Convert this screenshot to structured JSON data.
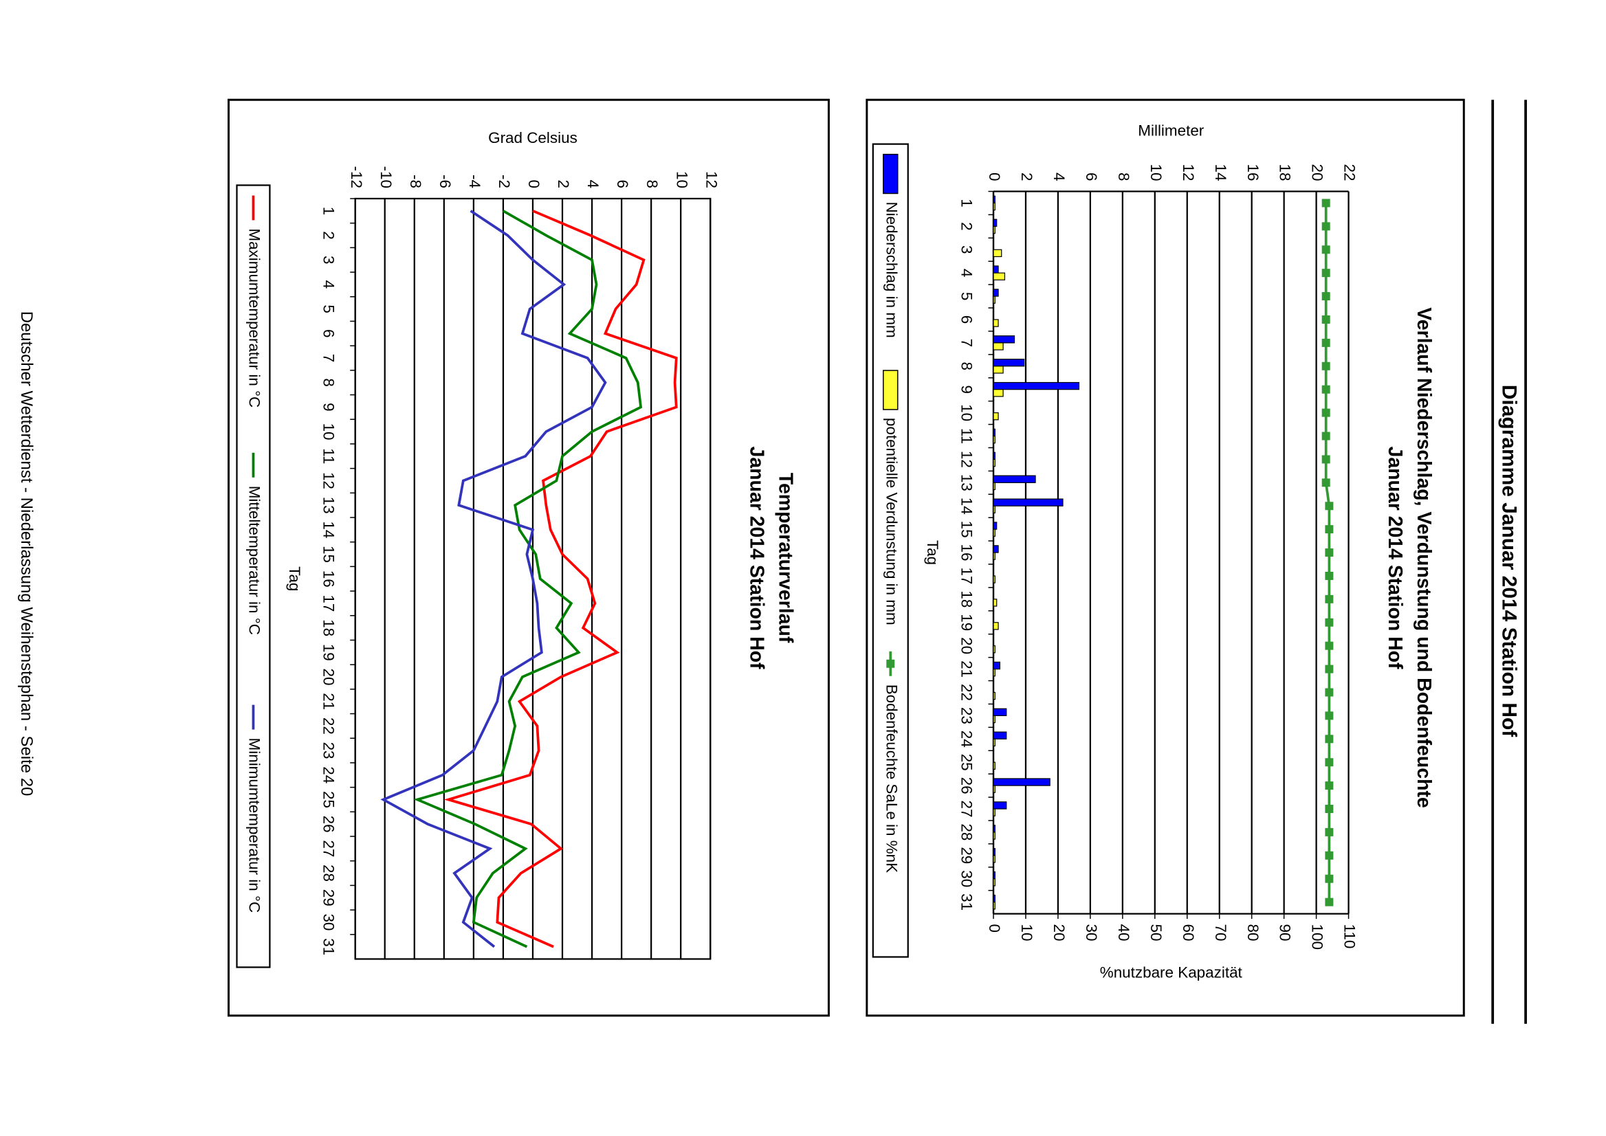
{
  "header": {
    "title": "Diagramme Januar 2014 Station Hof"
  },
  "footer": "Deutscher Wetterdienst - Niederlassung Weihenstephan - Seite 20",
  "chart_data": [
    {
      "type": "bar",
      "title": "Verlauf Niederschlag, Verdunstung und Bodenfeuchte",
      "subtitle": "Januar 2014 Station Hof",
      "x_label": "Tag",
      "y_label": "Millimeter",
      "y2_label": "%nutzbare Kapazität",
      "categories": [
        "1",
        "2",
        "3",
        "4",
        "5",
        "6",
        "7",
        "8",
        "9",
        "10",
        "11",
        "12",
        "13",
        "14",
        "15",
        "16",
        "17",
        "18",
        "19",
        "20",
        "21",
        "22",
        "23",
        "24",
        "25",
        "26",
        "27",
        "28",
        "29",
        "30",
        "31"
      ],
      "ylim": [
        0,
        22
      ],
      "yticks": [
        0,
        2,
        4,
        6,
        8,
        10,
        12,
        14,
        16,
        18,
        20,
        22
      ],
      "y2lim": [
        0,
        110
      ],
      "y2ticks": [
        0,
        10,
        20,
        30,
        40,
        50,
        60,
        70,
        80,
        90,
        100,
        110
      ],
      "grid": true,
      "series": [
        {
          "name": "Niederschlag in mm",
          "color": "#0000ff",
          "type": "bar",
          "values": [
            0.1,
            0.2,
            0,
            0.3,
            0.3,
            0,
            1.3,
            1.9,
            5.3,
            0,
            0.1,
            0.1,
            2.6,
            4.3,
            0.2,
            0.3,
            0,
            0,
            0,
            0,
            0.4,
            0,
            0.8,
            0.8,
            0,
            3.5,
            0.8,
            0.1,
            0.1,
            0.1,
            0.1
          ]
        },
        {
          "name": "potentielle Verdunstung in mm",
          "color": "#ffff33",
          "type": "bar",
          "values": [
            0.1,
            0.1,
            0.5,
            0.7,
            0.1,
            0.3,
            0.6,
            0.6,
            0.6,
            0.3,
            0.1,
            0.1,
            0.1,
            0.1,
            0.1,
            0.1,
            0.1,
            0.2,
            0.3,
            0.1,
            0.1,
            0.1,
            0.1,
            0.1,
            0.1,
            0.1,
            0.1,
            0.1,
            0.1,
            0.1,
            0.1
          ]
        },
        {
          "name": "Bodenfeuchte SaLe in %nK",
          "color": "#339933",
          "type": "line",
          "axis": "y2",
          "marker": "square",
          "values": [
            103,
            103,
            103,
            103,
            103,
            103,
            103,
            103,
            103,
            103,
            103,
            103,
            103,
            104,
            104,
            104,
            104,
            104,
            104,
            104,
            104,
            104,
            104,
            104,
            104,
            104,
            104,
            104,
            104,
            104,
            104
          ]
        }
      ]
    },
    {
      "type": "line",
      "title": "Temperaturverlauf",
      "subtitle": "Januar 2014 Station Hof",
      "x_label": "Tag",
      "y_label": "Grad Celsius",
      "categories": [
        "1",
        "2",
        "3",
        "4",
        "5",
        "6",
        "7",
        "8",
        "9",
        "10",
        "11",
        "12",
        "13",
        "14",
        "15",
        "16",
        "17",
        "18",
        "19",
        "20",
        "21",
        "22",
        "23",
        "24",
        "25",
        "26",
        "27",
        "28",
        "29",
        "30",
        "31"
      ],
      "ylim": [
        -12,
        12
      ],
      "yticks": [
        -12,
        -10,
        -8,
        -6,
        -4,
        -2,
        0,
        2,
        4,
        6,
        8,
        10,
        12
      ],
      "grid": true,
      "series": [
        {
          "name": "Maximumtemperatur in °C",
          "color": "#ff0000",
          "values": [
            0.0,
            3.9,
            7.5,
            7.0,
            5.6,
            4.9,
            9.7,
            9.6,
            9.7,
            5.0,
            3.9,
            0.7,
            0.9,
            1.2,
            2.0,
            3.7,
            4.2,
            3.4,
            5.7,
            1.9,
            -0.9,
            0.3,
            0.4,
            -0.2,
            -5.7,
            -0.1,
            1.9,
            -0.8,
            -2.3,
            -2.4,
            1.4
          ]
        },
        {
          "name": "Mitteltemperatur in °C",
          "color": "#008000",
          "values": [
            -2.0,
            0.9,
            4.0,
            4.3,
            4.0,
            2.5,
            6.3,
            7.1,
            7.3,
            4.0,
            2.0,
            1.6,
            -1.2,
            -0.9,
            0.2,
            0.5,
            2.6,
            1.6,
            3.1,
            -0.7,
            -1.6,
            -1.2,
            -1.6,
            -2.1,
            -7.8,
            -3.9,
            -0.5,
            -2.7,
            -3.8,
            -4.0,
            -0.4
          ]
        },
        {
          "name": "Minimumtemperatur in °C",
          "color": "#3333bb",
          "values": [
            -4.2,
            -1.7,
            0.0,
            2.1,
            -0.2,
            -0.7,
            3.7,
            4.9,
            4.0,
            0.9,
            -0.5,
            -4.7,
            -5.0,
            0.0,
            -0.4,
            0.0,
            0.3,
            0.4,
            0.6,
            -2.1,
            -2.4,
            -3.2,
            -4.0,
            -6.1,
            -10.1,
            -7.1,
            -2.9,
            -5.3,
            -4.1,
            -4.7,
            -2.6
          ]
        }
      ]
    }
  ]
}
